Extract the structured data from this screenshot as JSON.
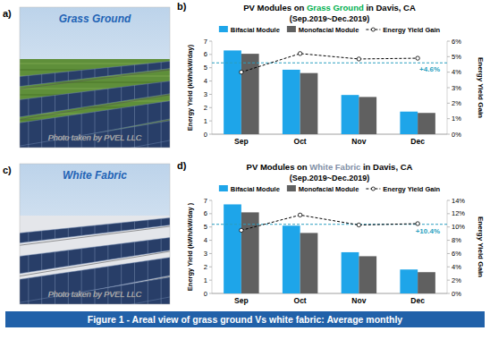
{
  "chart_data": [
    {
      "type": "bar",
      "panel_label": "b)",
      "title": "PV Modules on Grass Ground in Davis, CA",
      "title_highlight": "Grass Ground",
      "subtitle": "(Sep.2019~Dec.2019)",
      "categories": [
        "Sep",
        "Oct",
        "Nov",
        "Dec"
      ],
      "series": [
        {
          "name": "Bifacial Module",
          "type": "bar",
          "color": "#1ea5e9",
          "values": [
            6.3,
            4.85,
            2.95,
            1.7
          ]
        },
        {
          "name": "Monofacial Module",
          "type": "bar",
          "color": "#606060",
          "values": [
            6.05,
            4.6,
            2.8,
            1.6
          ]
        },
        {
          "name": "Energy Yield Gain",
          "type": "line",
          "axis": "y2",
          "color": "#000000",
          "line_style": "dashed",
          "marker": "circle",
          "values": [
            4.0,
            5.2,
            4.85,
            4.9
          ]
        }
      ],
      "reference_line": {
        "value": 4.6,
        "label": "+4.6%"
      },
      "y_label": "Energy Yield (kWh/kW/day)",
      "y2_label": "Energy Yield Gain",
      "ylim": [
        0,
        7
      ],
      "yticks": [
        0,
        1,
        2,
        3,
        4,
        5,
        6,
        7
      ],
      "y2lim": [
        0,
        6
      ],
      "y2ticks": [
        {
          "value": 0,
          "label": "0%"
        },
        {
          "value": 1,
          "label": "1%"
        },
        {
          "value": 2,
          "label": "2%"
        },
        {
          "value": 3,
          "label": "3%"
        },
        {
          "value": 4,
          "label": "4%"
        },
        {
          "value": 5,
          "label": "5%"
        },
        {
          "value": 6,
          "label": "6%"
        }
      ],
      "grid": false,
      "legend": "top"
    },
    {
      "type": "bar",
      "panel_label": "d)",
      "title": "PV Modules on White Fabric in Davis, CA",
      "title_highlight": "White Fabric",
      "subtitle": "(Sep.2019~Dec.2019)",
      "categories": [
        "Sep",
        "Oct",
        "Nov",
        "Dec"
      ],
      "series": [
        {
          "name": "Bifacial Module",
          "type": "bar",
          "color": "#1ea5e9",
          "values": [
            6.7,
            5.1,
            3.1,
            1.8
          ]
        },
        {
          "name": "Monofacial Module",
          "type": "bar",
          "color": "#606060",
          "values": [
            6.1,
            4.55,
            2.8,
            1.6
          ]
        },
        {
          "name": "Energy Yield Gain",
          "type": "line",
          "axis": "y2",
          "color": "#000000",
          "line_style": "dashed",
          "marker": "circle",
          "values": [
            9.5,
            11.8,
            10.3,
            10.5
          ]
        }
      ],
      "reference_line": {
        "value": 10.4,
        "label": "+10.4%"
      },
      "y_label": "Energy Yield (kWh/kW/day )",
      "y2_label": "Energy Yield Gain",
      "ylim": [
        0,
        7
      ],
      "yticks": [
        0,
        1,
        2,
        3,
        4,
        5,
        6,
        7
      ],
      "y2lim": [
        0,
        14
      ],
      "y2ticks": [
        {
          "value": 0,
          "label": "0%"
        },
        {
          "value": 2,
          "label": "2%"
        },
        {
          "value": 4,
          "label": "4%"
        },
        {
          "value": 6,
          "label": "6%"
        },
        {
          "value": 8,
          "label": "8%"
        },
        {
          "value": 10,
          "label": "10%"
        },
        {
          "value": 12,
          "label": "12%"
        },
        {
          "value": 14,
          "label": "14%"
        }
      ],
      "grid": false,
      "legend": "top"
    }
  ],
  "photos": [
    {
      "panel_label": "a)",
      "label": "Grass Ground",
      "credit": "Photo taken by PVEL LLC"
    },
    {
      "panel_label": "c)",
      "label": "White Fabric",
      "credit": "Photo taken by PVEL LLC"
    }
  ],
  "caption": "Figure 1 - Areal view of grass ground Vs white fabric: Average monthly"
}
